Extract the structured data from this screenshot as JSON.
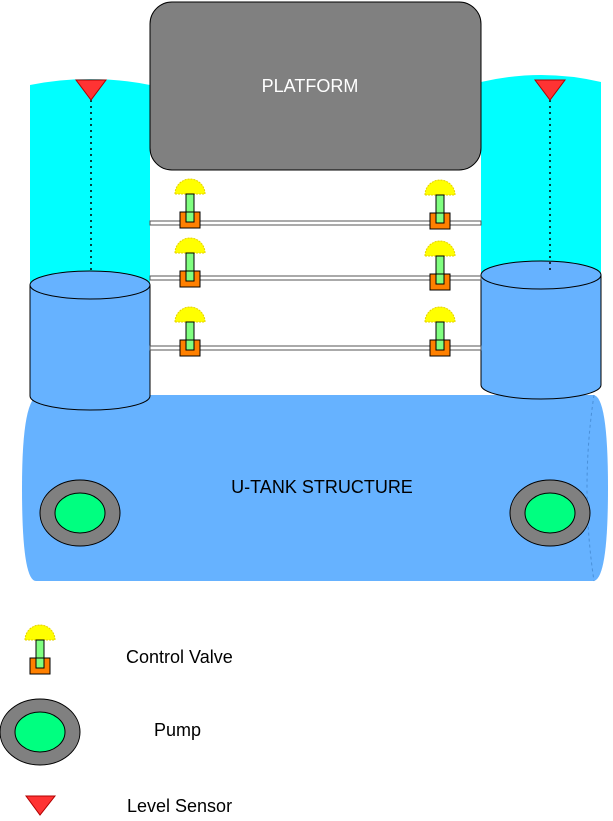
{
  "labels": {
    "platform": "PLATFORM",
    "utank": "U-TANK STRUCTURE"
  },
  "legend": {
    "control_valve": "Control Valve",
    "pump": "Pump",
    "level_sensor": "Level Sensor"
  },
  "colors": {
    "platform_fill": "#808080",
    "water_column": "#00FFFF",
    "tank_fill": "#66B2FF",
    "pump_ring": "#808080",
    "pump_core": "#00FF80",
    "valve_head": "#FFFF00",
    "valve_stem": "#80FF80",
    "valve_body": "#FF8000",
    "level_sensor": "#FF3333"
  }
}
